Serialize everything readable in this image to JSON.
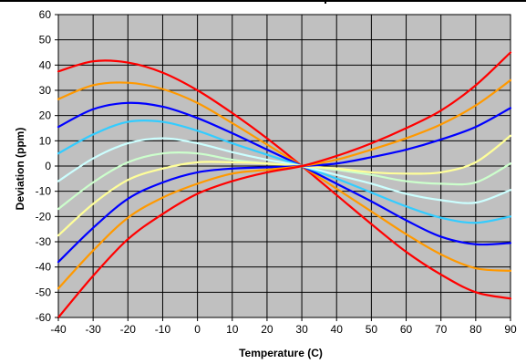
{
  "chart_data": {
    "type": "line",
    "title": "",
    "xlabel": "Temperature (C)",
    "ylabel": "Deviation (ppm)",
    "xlim": [
      -40,
      90
    ],
    "ylim": [
      -60,
      60
    ],
    "x_ticks": [
      "-40",
      "-30",
      "-20",
      "-10",
      "0",
      "10",
      "20",
      "30",
      "40",
      "50",
      "60",
      "70",
      "80",
      "90"
    ],
    "y_ticks": [
      "60",
      "50",
      "40",
      "30",
      "20",
      "10",
      "0",
      "-10",
      "-20",
      "-30",
      "-40",
      "-50",
      "-60"
    ],
    "grid": true,
    "legend": "none",
    "plot_background": "#c0c0c0",
    "grid_color": "#000000",
    "x": [
      -40,
      -30,
      -20,
      -10,
      0,
      10,
      20,
      30,
      40,
      50,
      60,
      70,
      80,
      90
    ],
    "series": [
      {
        "color": "#ff0000",
        "values": [
          37.5,
          41.5,
          41,
          37,
          30,
          21,
          11,
          0,
          -11.5,
          -23,
          -34,
          -43,
          -50,
          -52.5
        ]
      },
      {
        "color": "#ff9900",
        "values": [
          26.5,
          32,
          33,
          30.5,
          25,
          17,
          8.5,
          0,
          -9,
          -18,
          -27,
          -35,
          -40.5,
          -41.5
        ]
      },
      {
        "color": "#0000ff",
        "values": [
          15.5,
          22.5,
          25,
          23.5,
          19,
          13,
          6.5,
          0,
          -7,
          -14,
          -21.5,
          -28,
          -31,
          -30.5
        ]
      },
      {
        "color": "#33ccff",
        "values": [
          5,
          12.5,
          17.5,
          17.5,
          14,
          9,
          4.5,
          0,
          -5,
          -10.5,
          -16,
          -20.5,
          -22.5,
          -20
        ]
      },
      {
        "color": "#ccffff",
        "values": [
          -6,
          3,
          9,
          11,
          9,
          5.5,
          2.5,
          0,
          -3.5,
          -7,
          -11,
          -13.5,
          -14.5,
          -9.5
        ]
      },
      {
        "color": "#ccffcc",
        "values": [
          -17,
          -6.5,
          1.5,
          5,
          5,
          2.5,
          1,
          0,
          -1.5,
          -3.5,
          -6,
          -7,
          -6.5,
          1
        ]
      },
      {
        "color": "#ffff99",
        "values": [
          -27.5,
          -15,
          -5.5,
          -1,
          1.5,
          1.5,
          1,
          0,
          -1,
          -2.5,
          -3,
          -2.5,
          1.5,
          12
        ]
      },
      {
        "color": "#0000ff",
        "values": [
          -38,
          -24.5,
          -13,
          -6.5,
          -2.5,
          -1,
          -0.5,
          0,
          1,
          3.5,
          6.5,
          10.5,
          15.5,
          23
        ]
      },
      {
        "color": "#ff9900",
        "values": [
          -48.5,
          -33.5,
          -20.5,
          -12.5,
          -7,
          -3,
          -1.5,
          0,
          2.5,
          6.5,
          11,
          16.5,
          24,
          34
        ]
      },
      {
        "color": "#ff0000",
        "values": [
          -60,
          -43.5,
          -29,
          -19,
          -11,
          -6,
          -2.5,
          0,
          4,
          9,
          15,
          22,
          32,
          45
        ]
      }
    ]
  }
}
